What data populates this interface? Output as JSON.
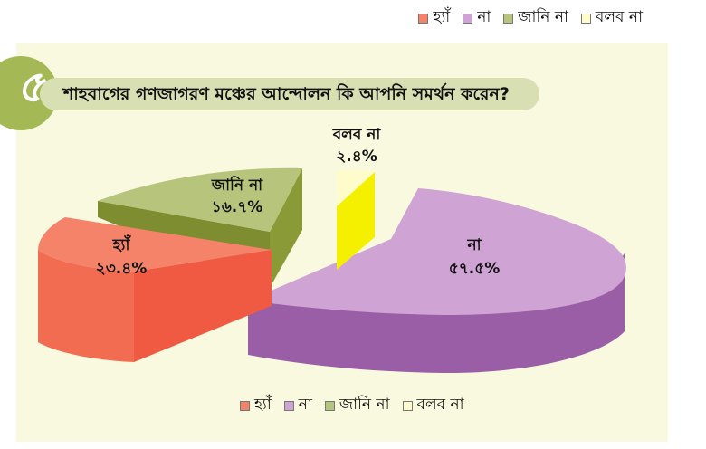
{
  "question": {
    "number": "৫",
    "text": "শাহবাগের গণজাগরণ মঞ্চের আন্দোলন কি আপনি সমর্থন করেন?"
  },
  "legend_items": [
    {
      "label": "হ্যাঁ",
      "color": "#f4836a"
    },
    {
      "label": "না",
      "color": "#cfa3d3"
    },
    {
      "label": "জানি না",
      "color": "#b7c47c"
    },
    {
      "label": "বলব না",
      "color": "#fefccb"
    }
  ],
  "chart_data": {
    "type": "pie",
    "categories": [
      "হ্যাঁ",
      "না",
      "জানি না",
      "বলব না"
    ],
    "values": [
      23.4,
      57.5,
      16.7,
      2.4
    ],
    "value_labels": [
      "২৩.৪%",
      "৫৭.৫%",
      "১৬.৭%",
      "২.৪%"
    ],
    "colors": [
      "#f4836a",
      "#cfa3d3",
      "#b7c47c",
      "#f5f07a"
    ],
    "title": "শাহবাগের গণজাগরণ মঞ্চের আন্দোলন কি আপনি সমর্থন করেন?",
    "legend_position": "top-right and bottom",
    "exploded": true,
    "style": "3d"
  }
}
